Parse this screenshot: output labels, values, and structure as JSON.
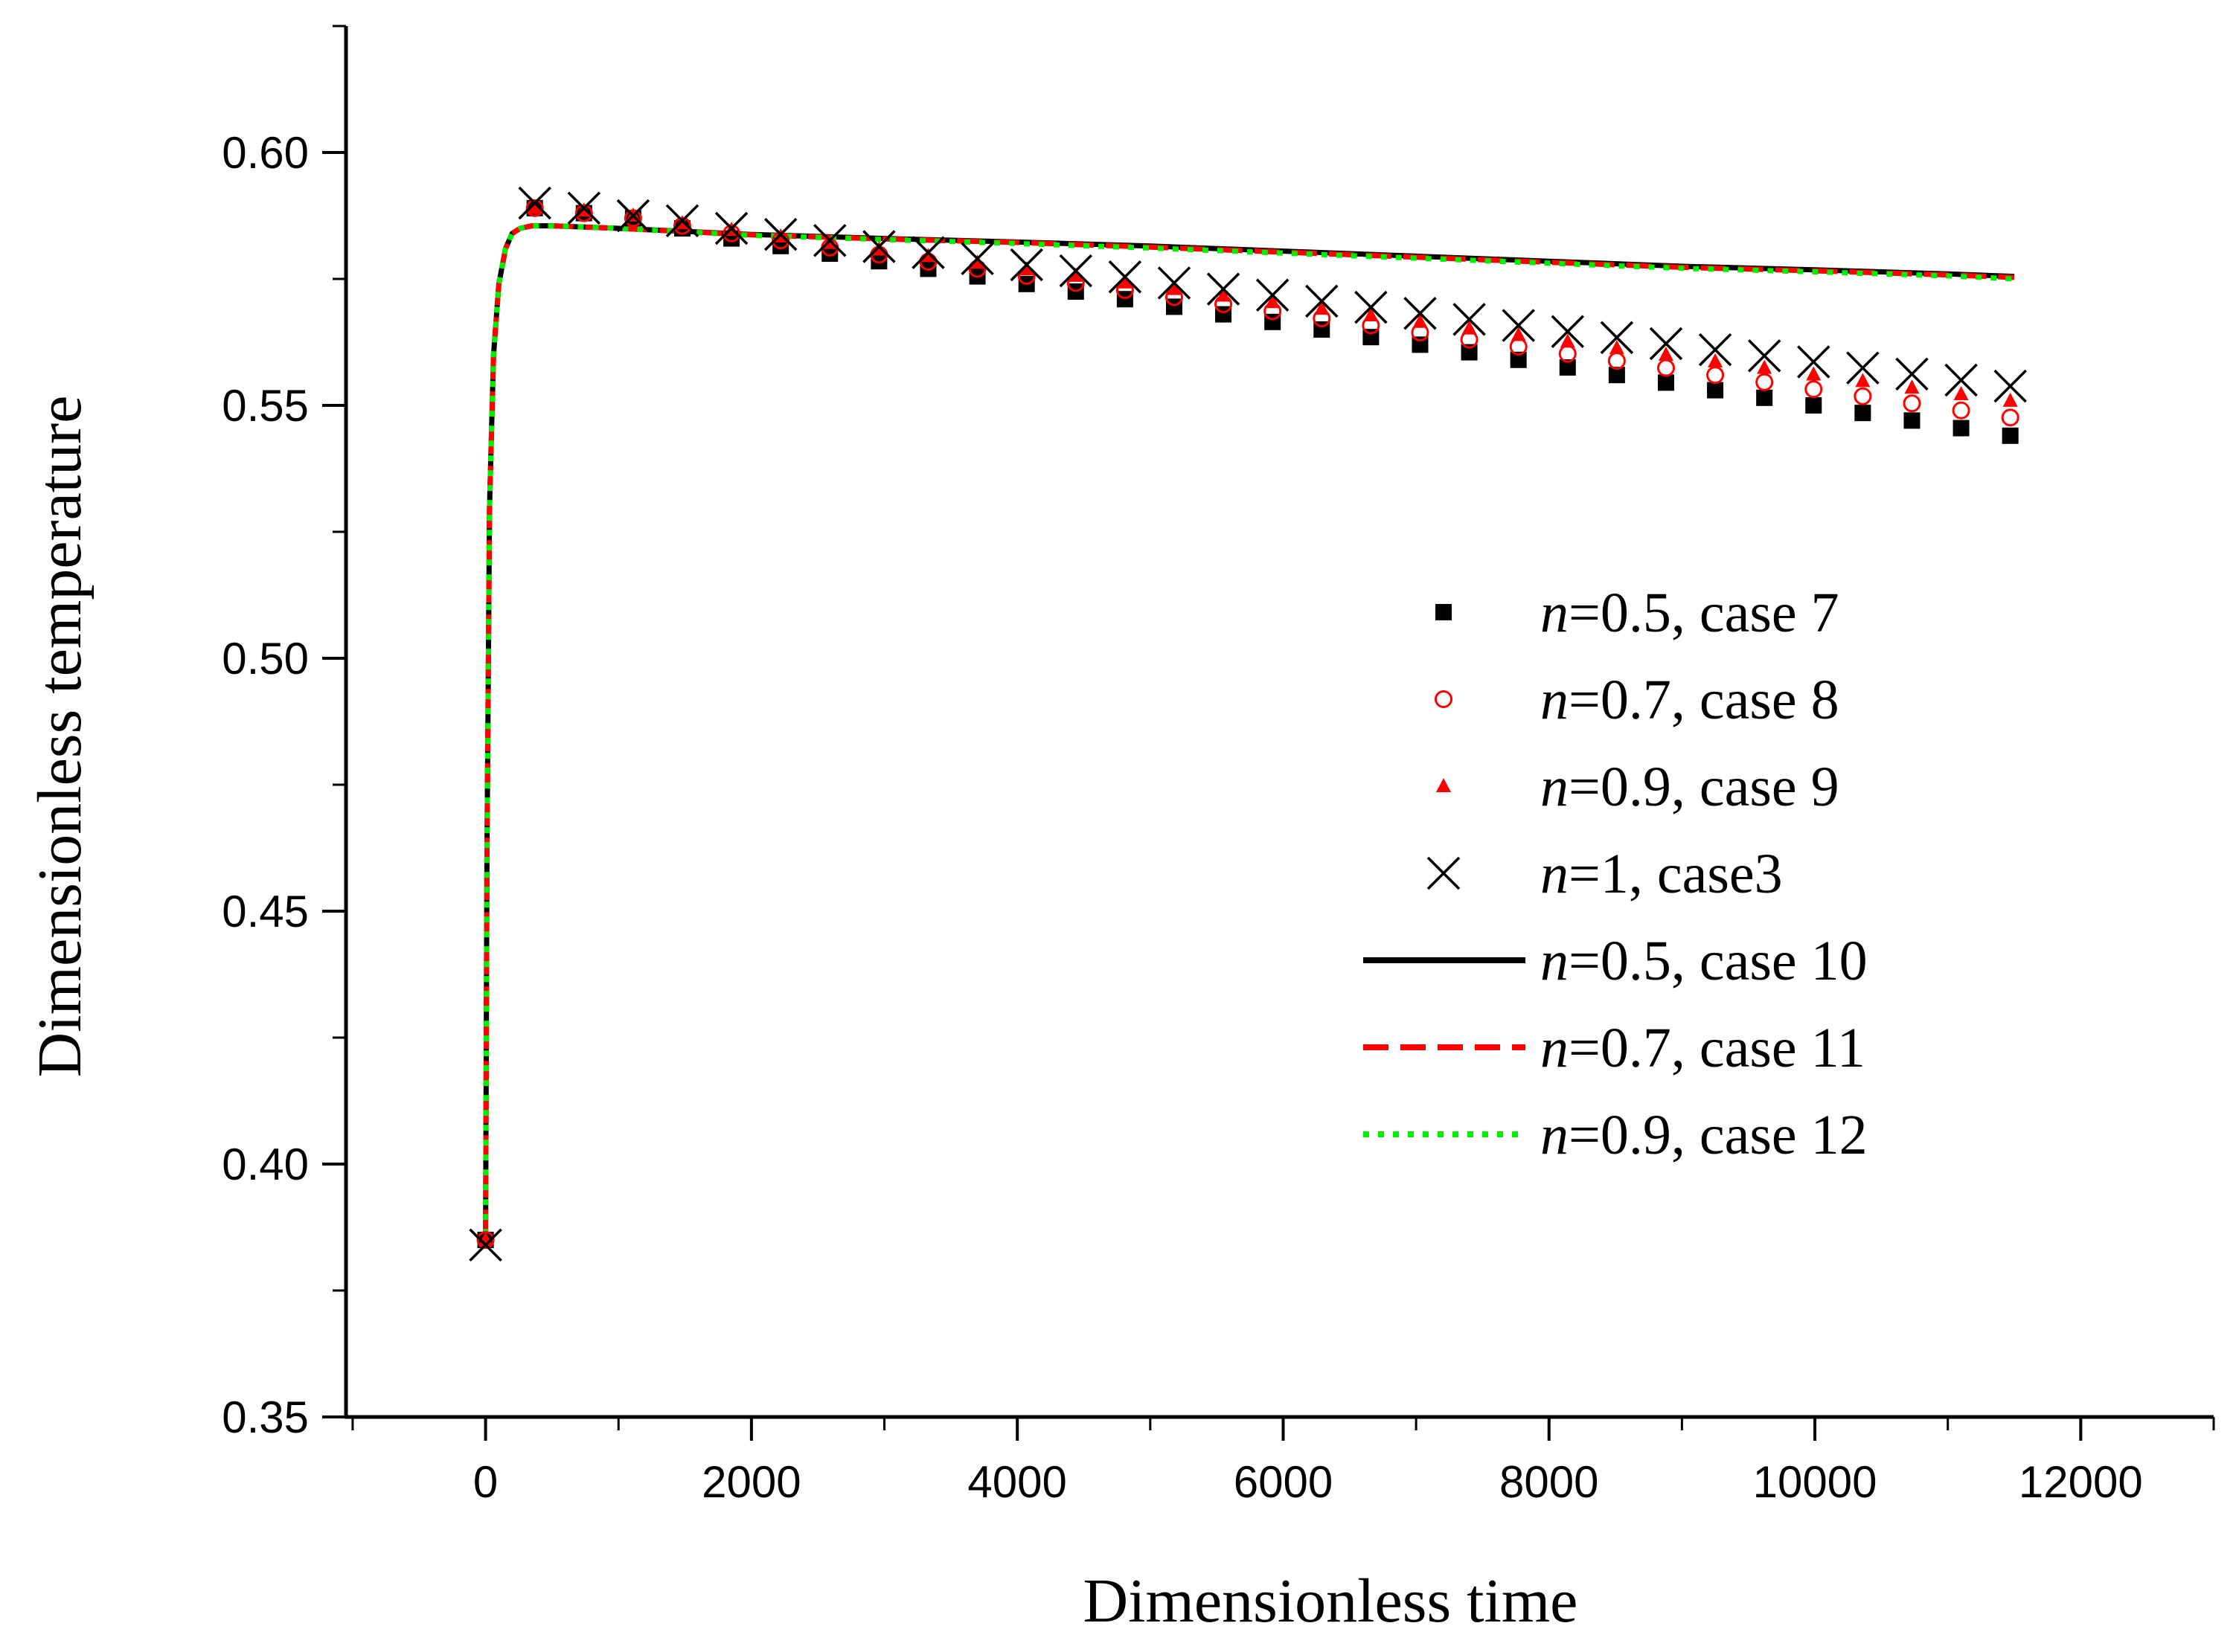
{
  "chart_data": {
    "type": "scatter",
    "title": "",
    "xlabel": "Dimensionless time",
    "ylabel": "Dimensionless temperature",
    "xlim": [
      -1050,
      13000
    ],
    "ylim": [
      0.35,
      0.625
    ],
    "xticks": [
      0,
      2000,
      4000,
      6000,
      8000,
      10000,
      12000
    ],
    "xtick_labels": [
      "0",
      "2000",
      "4000",
      "6000",
      "8000",
      "10000",
      "12000"
    ],
    "yticks": [
      0.35,
      0.4,
      0.45,
      0.5,
      0.55,
      0.6
    ],
    "ytick_labels": [
      "0.35",
      "0.40",
      "0.45",
      "0.50",
      "0.55",
      "0.60"
    ],
    "legend_position": "center-right",
    "marker_x": [
      0,
      370,
      740,
      1110,
      1480,
      1850,
      2220,
      2590,
      2960,
      3330,
      3700,
      4070,
      4440,
      4810,
      5180,
      5550,
      5920,
      6290,
      6660,
      7030,
      7400,
      7770,
      8140,
      8510,
      8880,
      9250,
      9620,
      9990,
      10360,
      10730,
      11100,
      11470
    ],
    "series": [
      {
        "name": "n=0.5, case 7",
        "var": "n",
        "label": "=0.5, case 7",
        "kind": "marker",
        "marker": "square",
        "color": "#000000",
        "y": [
          0.385,
          0.589,
          0.588,
          0.587,
          0.585,
          0.583,
          0.5815,
          0.58,
          0.5785,
          0.577,
          0.5755,
          0.574,
          0.5725,
          0.571,
          0.5695,
          0.568,
          0.5665,
          0.565,
          0.5635,
          0.562,
          0.5605,
          0.559,
          0.5575,
          0.556,
          0.5545,
          0.553,
          0.5515,
          0.55,
          0.5485,
          0.547,
          0.5455,
          0.544
        ]
      },
      {
        "name": "n=0.7, case 8",
        "var": "n",
        "label": "=0.7, case 8",
        "kind": "marker",
        "marker": "circle",
        "color": "#ff0000",
        "y": [
          0.385,
          0.589,
          0.588,
          0.587,
          0.5855,
          0.584,
          0.5826,
          0.5812,
          0.5798,
          0.5784,
          0.577,
          0.5756,
          0.5742,
          0.5728,
          0.5714,
          0.57,
          0.5686,
          0.5672,
          0.5658,
          0.5644,
          0.563,
          0.5616,
          0.5602,
          0.5588,
          0.5574,
          0.556,
          0.5546,
          0.5532,
          0.5518,
          0.5504,
          0.549,
          0.5476
        ]
      },
      {
        "name": "n=0.9, case 9",
        "var": "n",
        "label": "=0.9, case 9",
        "kind": "marker",
        "marker": "triangle",
        "color": "#ff0000",
        "y": [
          0.385,
          0.589,
          0.5885,
          0.5875,
          0.586,
          0.5847,
          0.5834,
          0.5821,
          0.5808,
          0.5795,
          0.5782,
          0.5769,
          0.5756,
          0.5743,
          0.573,
          0.5717,
          0.5704,
          0.5691,
          0.5678,
          0.5665,
          0.5652,
          0.5639,
          0.5626,
          0.5613,
          0.56,
          0.5587,
          0.5574,
          0.5561,
          0.5548,
          0.5535,
          0.5522,
          0.5509
        ]
      },
      {
        "name": "n=1, case3",
        "var": "n",
        "label": "=1, case3",
        "kind": "marker",
        "marker": "x",
        "color": "#000000",
        "y": [
          0.384,
          0.59,
          0.589,
          0.5875,
          0.5865,
          0.585,
          0.5838,
          0.5826,
          0.5814,
          0.5802,
          0.579,
          0.5778,
          0.5766,
          0.5754,
          0.5742,
          0.573,
          0.5718,
          0.5706,
          0.5694,
          0.5682,
          0.567,
          0.5658,
          0.5646,
          0.5634,
          0.5622,
          0.561,
          0.5598,
          0.5586,
          0.5574,
          0.5562,
          0.555,
          0.5538
        ]
      },
      {
        "name": "n=0.5, case 10",
        "var": "n",
        "label": "=0.5, case 10",
        "kind": "line",
        "dash": "solid",
        "color": "#000000",
        "x": [
          0,
          10,
          30,
          60,
          100,
          150,
          200,
          260,
          350,
          500,
          1000,
          2000,
          3000,
          4000,
          5000,
          6000,
          7000,
          8000,
          9000,
          10000,
          11000,
          11500
        ],
        "y": [
          0.386,
          0.46,
          0.53,
          0.56,
          0.574,
          0.581,
          0.584,
          0.585,
          0.5855,
          0.5855,
          0.585,
          0.5838,
          0.583,
          0.5823,
          0.5815,
          0.5805,
          0.5795,
          0.5785,
          0.5775,
          0.5768,
          0.576,
          0.5755
        ]
      },
      {
        "name": "n=0.7, case 11",
        "var": "n",
        "label": "=0.7, case 11",
        "kind": "line",
        "dash": "dashed",
        "color": "#ff0000",
        "x": [
          0,
          10,
          30,
          60,
          100,
          150,
          200,
          260,
          350,
          500,
          1000,
          2000,
          3000,
          4000,
          5000,
          6000,
          7000,
          8000,
          9000,
          10000,
          11000,
          11500
        ],
        "y": [
          0.386,
          0.46,
          0.53,
          0.56,
          0.574,
          0.581,
          0.584,
          0.585,
          0.5855,
          0.5855,
          0.585,
          0.5837,
          0.5829,
          0.5822,
          0.5813,
          0.5803,
          0.5793,
          0.5783,
          0.5773,
          0.5766,
          0.5758,
          0.5753
        ]
      },
      {
        "name": "n=0.9, case 12",
        "var": "n",
        "label": "=0.9, case 12",
        "kind": "line",
        "dash": "dotted",
        "color": "#00ee00",
        "x": [
          0,
          10,
          30,
          60,
          100,
          150,
          200,
          260,
          350,
          500,
          1000,
          2000,
          3000,
          4000,
          5000,
          6000,
          7000,
          8000,
          9000,
          10000,
          11000,
          11500
        ],
        "y": [
          0.386,
          0.46,
          0.53,
          0.56,
          0.574,
          0.581,
          0.584,
          0.585,
          0.5855,
          0.5855,
          0.585,
          0.5836,
          0.5828,
          0.582,
          0.5811,
          0.5801,
          0.5791,
          0.5781,
          0.5771,
          0.5764,
          0.5756,
          0.575
        ]
      }
    ]
  }
}
